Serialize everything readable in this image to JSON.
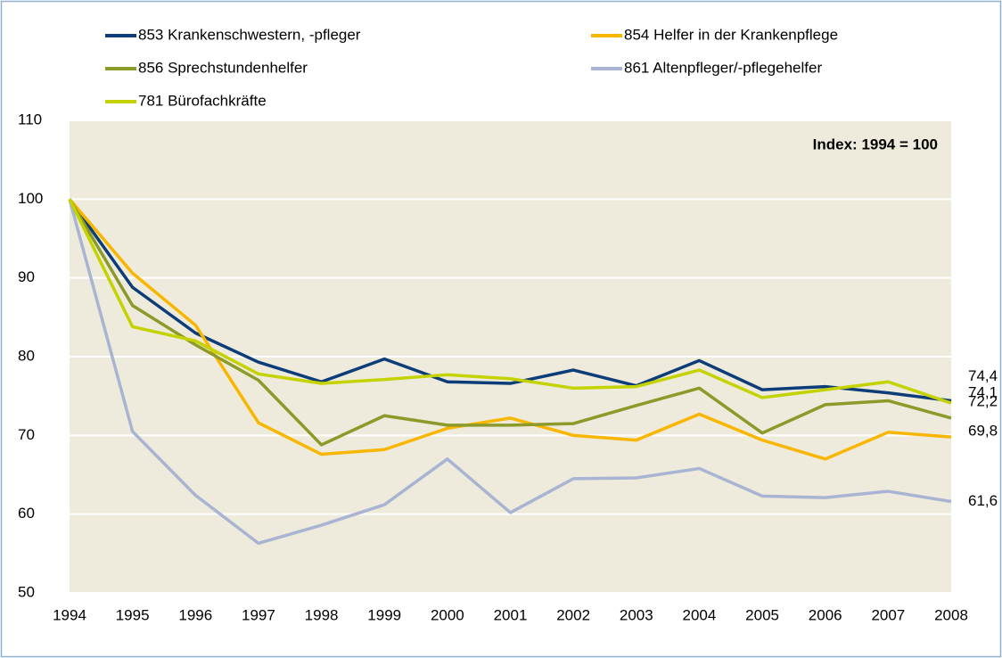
{
  "chart_data": {
    "type": "line",
    "annotation": "Index: 1994 = 100",
    "categories": [
      "1994",
      "1995",
      "1996",
      "1997",
      "1998",
      "1999",
      "2000",
      "2001",
      "2002",
      "2003",
      "2004",
      "2005",
      "2006",
      "2007",
      "2008"
    ],
    "series": [
      {
        "name": "853 Krankenschwestern,  -pfleger",
        "color": "#0d3d78",
        "values": [
          100,
          88.8,
          83,
          79.3,
          76.8,
          79.7,
          76.8,
          76.6,
          78.3,
          76.3,
          79.5,
          75.8,
          76.2,
          75.4,
          74.4
        ],
        "value_labels": [
          null,
          null,
          null,
          null,
          null,
          null,
          null,
          null,
          null,
          null,
          null,
          null,
          null,
          null,
          "74,4"
        ]
      },
      {
        "name": "854 Helfer in der Krankenpflege",
        "color": "#f8b600",
        "values": [
          100,
          90.6,
          84,
          71.6,
          67.6,
          68.2,
          70.9,
          72.2,
          70,
          69.4,
          72.7,
          69.4,
          67,
          70.4,
          69.8
        ],
        "value_labels": [
          null,
          null,
          null,
          null,
          null,
          null,
          null,
          null,
          null,
          null,
          null,
          null,
          null,
          null,
          "69,8"
        ]
      },
      {
        "name": "856 Sprechstundenhelfer",
        "color": "#8c9a2a",
        "values": [
          100,
          86.5,
          81.5,
          77,
          68.8,
          72.5,
          71.3,
          71.3,
          71.5,
          73.8,
          76,
          70.3,
          73.9,
          74.4,
          72.2
        ],
        "value_labels": [
          null,
          null,
          null,
          null,
          null,
          null,
          null,
          null,
          null,
          null,
          null,
          null,
          null,
          null,
          "72,2"
        ]
      },
      {
        "name": "861 Altenpfleger/-pflegehelfer",
        "color": "#a9b4d3",
        "values": [
          100,
          70.5,
          62.4,
          56.3,
          58.6,
          61.2,
          67,
          60.2,
          64.5,
          64.6,
          65.8,
          62.3,
          62.1,
          62.9,
          61.6
        ],
        "value_labels": [
          null,
          null,
          null,
          null,
          null,
          null,
          null,
          null,
          null,
          null,
          null,
          null,
          null,
          null,
          "61,6"
        ]
      },
      {
        "name": "781 Bürofachkräfte",
        "color": "#c4d200",
        "values": [
          100,
          83.8,
          82,
          77.8,
          76.6,
          77.1,
          77.7,
          77.2,
          76,
          76.2,
          78.3,
          74.8,
          75.8,
          76.8,
          74.1
        ],
        "value_labels": [
          null,
          null,
          null,
          null,
          null,
          null,
          null,
          null,
          null,
          null,
          null,
          null,
          null,
          null,
          "74,1"
        ]
      }
    ],
    "ylim": [
      50,
      110
    ],
    "yticks": [
      50,
      60,
      70,
      80,
      90,
      100,
      110
    ],
    "grid": true
  }
}
